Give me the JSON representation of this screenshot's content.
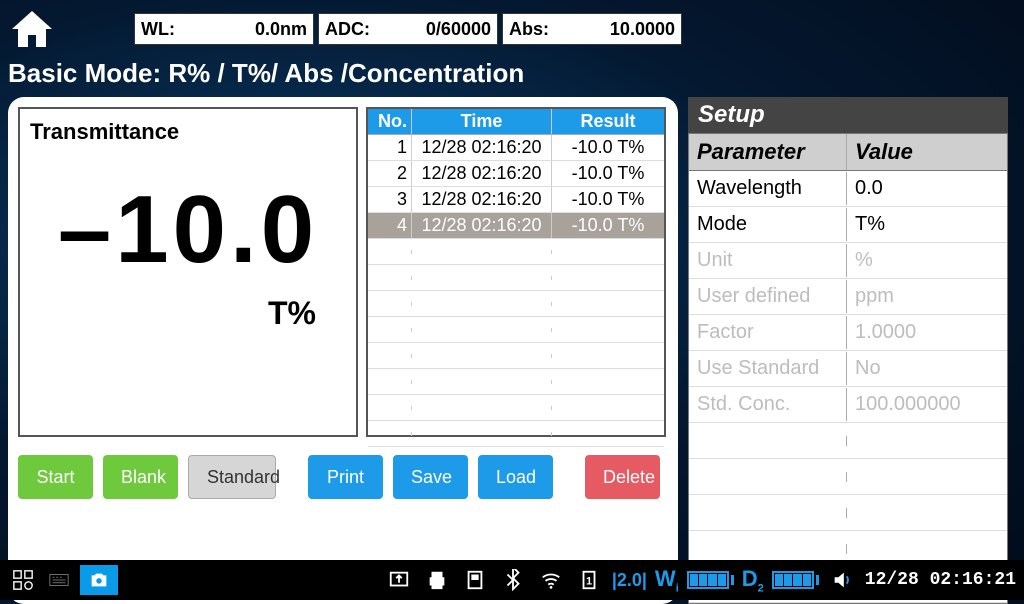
{
  "topbar": {
    "wl_label": "WL:",
    "wl_value": "0.0nm",
    "adc_label": "ADC:",
    "adc_value": "0/60000",
    "abs_label": "Abs:",
    "abs_value": "10.0000"
  },
  "mode_title": "Basic Mode: R% / T%/ Abs /Concentration",
  "display": {
    "label": "Transmittance",
    "value": "–10.0",
    "unit": "T%"
  },
  "results": {
    "headers": {
      "no": "No.",
      "time": "Time",
      "result": "Result"
    },
    "rows": [
      {
        "no": "1",
        "time": "12/28 02:16:20",
        "result": "-10.0 T%",
        "selected": false
      },
      {
        "no": "2",
        "time": "12/28 02:16:20",
        "result": "-10.0 T%",
        "selected": false
      },
      {
        "no": "3",
        "time": "12/28 02:16:20",
        "result": "-10.0 T%",
        "selected": false
      },
      {
        "no": "4",
        "time": "12/28 02:16:20",
        "result": "-10.0 T%",
        "selected": true
      }
    ]
  },
  "buttons": {
    "start": "Start",
    "blank": "Blank",
    "standard": "Standard",
    "print": "Print",
    "save": "Save",
    "load": "Load",
    "delete": "Delete"
  },
  "setup": {
    "title": "Setup",
    "headers": {
      "param": "Parameter",
      "value": "Value"
    },
    "rows": [
      {
        "param": "Wavelength",
        "value": "0.0",
        "disabled": false
      },
      {
        "param": "Mode",
        "value": "T%",
        "disabled": false
      },
      {
        "param": "Unit",
        "value": "%",
        "disabled": true
      },
      {
        "param": "User defined",
        "value": "ppm",
        "disabled": true
      },
      {
        "param": "Factor",
        "value": "1.0000",
        "disabled": true
      },
      {
        "param": "Use Standard",
        "value": "No",
        "disabled": true
      },
      {
        "param": "Std. Conc.",
        "value": "100.000000",
        "disabled": true
      }
    ]
  },
  "statusbar": {
    "wifi_label": "W",
    "data_label": "D",
    "datetime": "12/28 02:16:21",
    "rate": "|2.0|"
  },
  "colors": {
    "accent_blue": "#1e9be8",
    "btn_green": "#6eca3c",
    "btn_red": "#e65a63",
    "header_gray": "#cfcfcf"
  }
}
